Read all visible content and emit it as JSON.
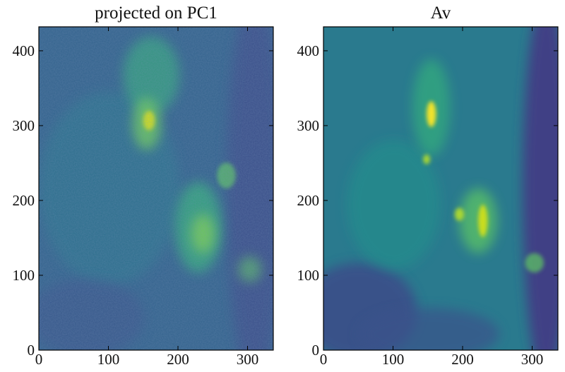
{
  "chart_data": [
    {
      "type": "image",
      "title": "projected on PC1",
      "xlim": [
        0,
        337
      ],
      "ylim": [
        0,
        432
      ],
      "xticks": [
        0,
        100,
        200,
        300
      ],
      "yticks": [
        0,
        100,
        200,
        300,
        400
      ]
    },
    {
      "type": "image",
      "title": "Av",
      "xlim": [
        0,
        337
      ],
      "ylim": [
        0,
        432
      ],
      "xticks": [
        0,
        100,
        200,
        300
      ],
      "yticks": [
        0,
        100,
        200,
        300,
        400
      ]
    }
  ]
}
